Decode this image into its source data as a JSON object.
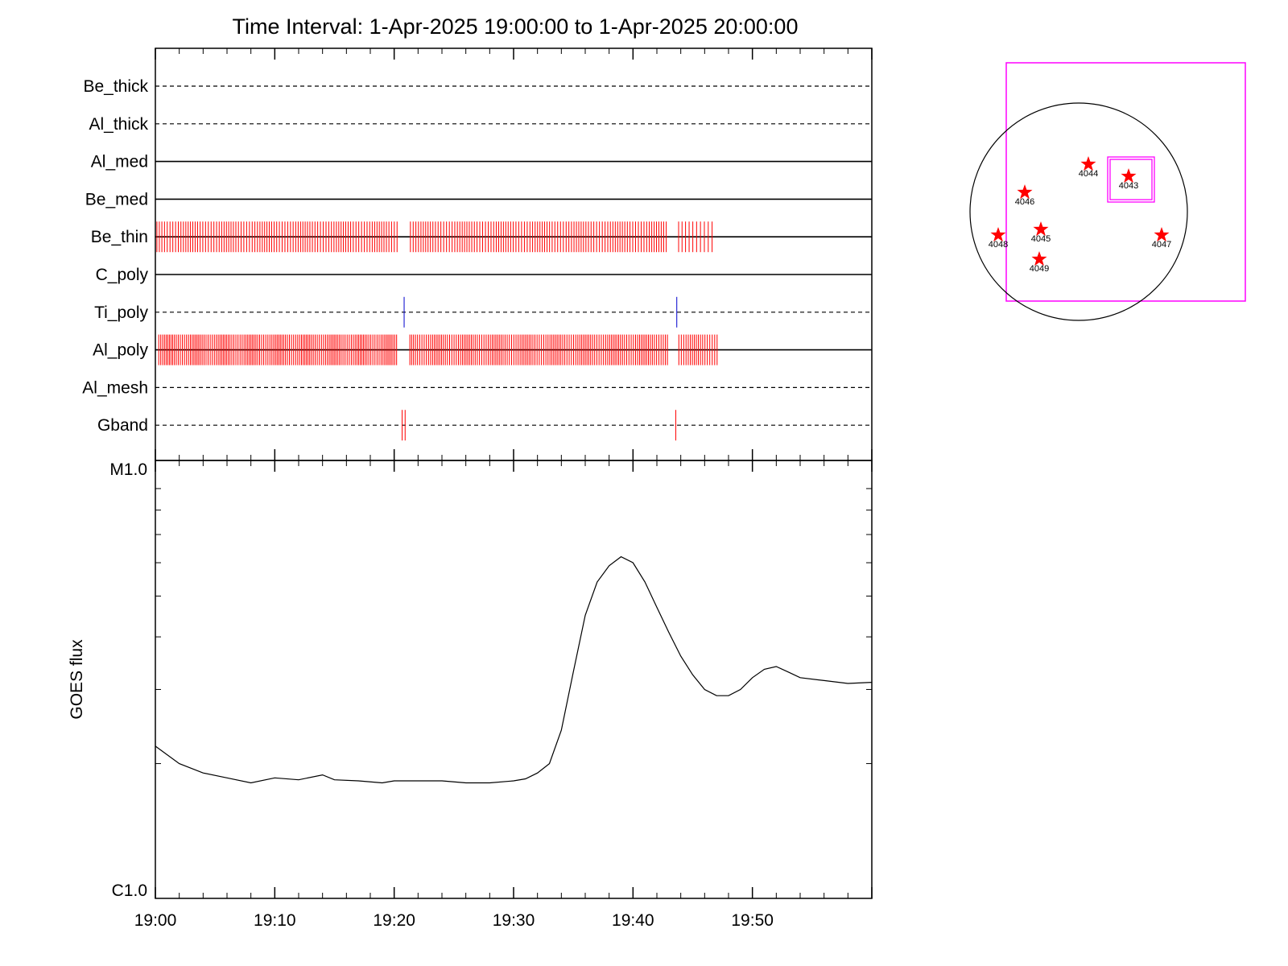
{
  "title": "Time Interval:  1-Apr-2025 19:00:00 to  1-Apr-2025 20:00:00",
  "colors": {
    "event_red": "#ff0000",
    "event_blue": "#0000cc",
    "map_box": "#ff00ff",
    "axis": "#000000"
  },
  "chart_data": [
    {
      "type": "line",
      "subtype": "event-timeline",
      "x_range": [
        "19:00",
        "20:00"
      ],
      "channels": [
        {
          "name": "Be_thick",
          "line_style": "dashed",
          "events": []
        },
        {
          "name": "Al_thick",
          "line_style": "dashed",
          "events": []
        },
        {
          "name": "Al_med",
          "line_style": "solid",
          "events": []
        },
        {
          "name": "Be_med",
          "line_style": "solid",
          "events": []
        },
        {
          "name": "Be_thin",
          "line_style": "solid",
          "event_color": "red",
          "event_blocks": [
            {
              "start": "19:00:10",
              "end": "19:20:15",
              "count": 95
            },
            {
              "start": "19:21:20",
              "end": "19:42:50",
              "count": 100
            },
            {
              "start": "19:43:50",
              "end": "19:46:35",
              "count": 10
            }
          ]
        },
        {
          "name": "C_poly",
          "line_style": "solid",
          "events": []
        },
        {
          "name": "Ti_poly",
          "line_style": "dashed",
          "event_color": "blue",
          "events": [
            "19:20:50",
            "19:43:40"
          ]
        },
        {
          "name": "Al_poly",
          "line_style": "solid",
          "event_color": "red",
          "event_blocks": [
            {
              "start": "19:00:15",
              "end": "19:20:15",
              "count": 130
            },
            {
              "start": "19:21:20",
              "end": "19:42:50",
              "count": 130
            },
            {
              "start": "19:43:50",
              "end": "19:47:00",
              "count": 18
            }
          ]
        },
        {
          "name": "Al_mesh",
          "line_style": "dashed",
          "events": []
        },
        {
          "name": "Gband",
          "line_style": "dashed",
          "event_color": "red",
          "events": [
            "19:20:40",
            "19:20:55",
            "19:43:35"
          ]
        }
      ]
    },
    {
      "type": "line",
      "ylabel": "GOES flux",
      "y_scale": "log",
      "ylim": [
        "C1.0",
        "M1.0"
      ],
      "y_tick_labels": [
        "C1.0",
        "M1.0"
      ],
      "x_tick_labels": [
        "19:00",
        "19:10",
        "19:20",
        "19:30",
        "19:40",
        "19:50"
      ],
      "x_range": [
        "19:00",
        "20:00"
      ],
      "series": [
        {
          "x": [
            "19:00",
            "19:02",
            "19:04",
            "19:06",
            "19:08",
            "19:10",
            "19:12",
            "19:14",
            "19:15",
            "19:17",
            "19:19",
            "19:20",
            "19:22",
            "19:24",
            "19:26",
            "19:28",
            "19:30",
            "19:31",
            "19:32",
            "19:33",
            "19:34",
            "19:35",
            "19:36",
            "19:37",
            "19:38",
            "19:39",
            "19:40",
            "19:41",
            "19:42",
            "19:43",
            "19:44",
            "19:45",
            "19:46",
            "19:47",
            "19:48",
            "19:49",
            "19:50",
            "19:51",
            "19:52",
            "19:53",
            "19:54",
            "19:56",
            "19:58",
            "20:00"
          ],
          "y": [
            "C2.2",
            "C2.0",
            "C1.9",
            "C1.85",
            "C1.8",
            "C1.85",
            "C1.83",
            "C1.88",
            "C1.83",
            "C1.82",
            "C1.8",
            "C1.82",
            "C1.82",
            "C1.82",
            "C1.8",
            "C1.8",
            "C1.82",
            "C1.84",
            "C1.9",
            "C2.0",
            "C2.4",
            "C3.3",
            "C4.5",
            "C5.4",
            "C5.9",
            "C6.2",
            "C6.0",
            "C5.4",
            "C4.7",
            "C4.1",
            "C3.6",
            "C3.25",
            "C3.0",
            "C2.9",
            "C2.9",
            "C3.0",
            "C3.2",
            "C3.35",
            "C3.4",
            "C3.3",
            "C3.2",
            "C3.15",
            "C3.1",
            "C3.12"
          ]
        }
      ]
    }
  ],
  "map": {
    "regions": [
      {
        "label": "4044"
      },
      {
        "label": "4043"
      },
      {
        "label": "4046"
      },
      {
        "label": "4048"
      },
      {
        "label": "4045"
      },
      {
        "label": "4047"
      },
      {
        "label": "4049"
      }
    ]
  }
}
